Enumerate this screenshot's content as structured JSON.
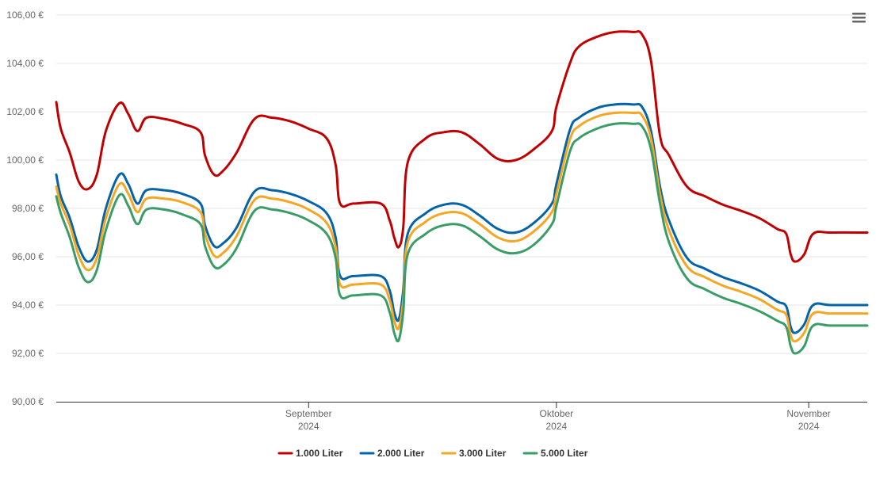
{
  "chart_data": {
    "type": "line",
    "currency_suffix": " €",
    "y_ticks": [
      "90,00 €",
      "92,00 €",
      "94,00 €",
      "96,00 €",
      "98,00 €",
      "100,00 €",
      "102,00 €",
      "104,00 €",
      "106,00 €"
    ],
    "ylim": [
      90,
      106
    ],
    "xlim": [
      0,
      90
    ],
    "x_ticks": [
      {
        "day": 28,
        "month": "September",
        "year": "2024"
      },
      {
        "day": 55.5,
        "month": "Oktober",
        "year": "2024"
      },
      {
        "day": 83.5,
        "month": "November",
        "year": "2024"
      }
    ],
    "grid": true,
    "legend_position": "bottom-center",
    "series": [
      {
        "name": "1.000 Liter",
        "color": "#c00000",
        "points": [
          [
            0,
            102.4
          ],
          [
            0.5,
            101.3
          ],
          [
            1.5,
            100.3
          ],
          [
            2.5,
            99.1
          ],
          [
            3.5,
            98.8
          ],
          [
            4.5,
            99.4
          ],
          [
            5.5,
            101.2
          ],
          [
            7,
            102.35
          ],
          [
            8,
            101.9
          ],
          [
            9,
            101.2
          ],
          [
            10,
            101.75
          ],
          [
            12,
            101.7
          ],
          [
            14,
            101.5
          ],
          [
            16,
            101.15
          ],
          [
            16.5,
            100.2
          ],
          [
            17.5,
            99.4
          ],
          [
            18.5,
            99.55
          ],
          [
            20,
            100.3
          ],
          [
            22,
            101.7
          ],
          [
            24,
            101.75
          ],
          [
            26,
            101.6
          ],
          [
            28,
            101.3
          ],
          [
            30,
            100.9
          ],
          [
            31,
            99.8
          ],
          [
            31.5,
            98.2
          ],
          [
            33,
            98.2
          ],
          [
            36,
            98.2
          ],
          [
            37,
            97.5
          ],
          [
            37.5,
            96.8
          ],
          [
            38,
            96.4
          ],
          [
            38.5,
            97.2
          ],
          [
            39,
            99.9
          ],
          [
            41,
            100.9
          ],
          [
            43,
            101.15
          ],
          [
            45,
            101.15
          ],
          [
            47,
            100.65
          ],
          [
            49,
            100.05
          ],
          [
            51,
            100.0
          ],
          [
            53,
            100.45
          ],
          [
            55,
            101.2
          ],
          [
            55.5,
            102.2
          ],
          [
            57,
            104.0
          ],
          [
            58,
            104.7
          ],
          [
            60,
            105.1
          ],
          [
            62,
            105.3
          ],
          [
            64,
            105.3
          ],
          [
            65,
            105.2
          ],
          [
            66,
            104.1
          ],
          [
            67,
            101.0
          ],
          [
            68,
            100.2
          ],
          [
            70,
            98.9
          ],
          [
            72,
            98.5
          ],
          [
            74,
            98.15
          ],
          [
            76,
            97.9
          ],
          [
            78,
            97.6
          ],
          [
            80,
            97.15
          ],
          [
            81,
            96.95
          ],
          [
            81.5,
            96.1
          ],
          [
            82,
            95.8
          ],
          [
            83,
            96.1
          ],
          [
            84,
            96.95
          ],
          [
            86,
            97.0
          ],
          [
            90,
            97.0
          ]
        ]
      },
      {
        "name": "2.000 Liter",
        "color": "#0563a8",
        "points": [
          [
            0,
            99.4
          ],
          [
            0.5,
            98.5
          ],
          [
            1.5,
            97.6
          ],
          [
            2.5,
            96.4
          ],
          [
            3.5,
            95.8
          ],
          [
            4.5,
            96.3
          ],
          [
            5.5,
            98.0
          ],
          [
            7,
            99.4
          ],
          [
            8,
            99.0
          ],
          [
            9,
            98.2
          ],
          [
            10,
            98.75
          ],
          [
            12,
            98.75
          ],
          [
            14,
            98.6
          ],
          [
            16,
            98.2
          ],
          [
            16.5,
            97.3
          ],
          [
            17.5,
            96.45
          ],
          [
            18.5,
            96.55
          ],
          [
            20,
            97.2
          ],
          [
            22,
            98.7
          ],
          [
            24,
            98.75
          ],
          [
            26,
            98.6
          ],
          [
            28,
            98.3
          ],
          [
            30,
            97.8
          ],
          [
            31,
            96.8
          ],
          [
            31.5,
            95.2
          ],
          [
            33,
            95.2
          ],
          [
            36,
            95.2
          ],
          [
            37,
            94.6
          ],
          [
            37.5,
            93.7
          ],
          [
            38,
            93.4
          ],
          [
            38.5,
            94.6
          ],
          [
            39,
            96.95
          ],
          [
            41,
            97.8
          ],
          [
            43,
            98.15
          ],
          [
            45,
            98.15
          ],
          [
            47,
            97.7
          ],
          [
            49,
            97.15
          ],
          [
            51,
            97.0
          ],
          [
            53,
            97.4
          ],
          [
            55,
            98.2
          ],
          [
            55.5,
            99.0
          ],
          [
            57,
            101.25
          ],
          [
            58,
            101.75
          ],
          [
            60,
            102.15
          ],
          [
            62,
            102.3
          ],
          [
            64,
            102.3
          ],
          [
            65,
            102.2
          ],
          [
            66,
            101.2
          ],
          [
            67,
            98.9
          ],
          [
            68,
            97.5
          ],
          [
            70,
            95.95
          ],
          [
            72,
            95.5
          ],
          [
            74,
            95.15
          ],
          [
            76,
            94.9
          ],
          [
            78,
            94.6
          ],
          [
            80,
            94.15
          ],
          [
            81,
            93.95
          ],
          [
            81.5,
            93.1
          ],
          [
            82,
            92.85
          ],
          [
            83,
            93.2
          ],
          [
            84,
            94.0
          ],
          [
            86,
            94.0
          ],
          [
            90,
            94.0
          ]
        ]
      },
      {
        "name": "3.000 Liter",
        "color": "#f5a623",
        "points": [
          [
            0,
            98.9
          ],
          [
            0.5,
            98.2
          ],
          [
            1.5,
            97.3
          ],
          [
            2.5,
            96.05
          ],
          [
            3.5,
            95.45
          ],
          [
            4.5,
            95.95
          ],
          [
            5.5,
            97.6
          ],
          [
            7,
            99.0
          ],
          [
            8,
            98.6
          ],
          [
            9,
            97.85
          ],
          [
            10,
            98.4
          ],
          [
            12,
            98.4
          ],
          [
            14,
            98.25
          ],
          [
            16,
            97.85
          ],
          [
            16.5,
            96.95
          ],
          [
            17.5,
            96.05
          ],
          [
            18.5,
            96.15
          ],
          [
            20,
            96.85
          ],
          [
            22,
            98.35
          ],
          [
            24,
            98.4
          ],
          [
            26,
            98.25
          ],
          [
            28,
            97.95
          ],
          [
            30,
            97.4
          ],
          [
            31,
            96.4
          ],
          [
            31.5,
            94.85
          ],
          [
            33,
            94.85
          ],
          [
            36,
            94.85
          ],
          [
            37,
            94.2
          ],
          [
            37.5,
            93.35
          ],
          [
            38,
            93.05
          ],
          [
            38.5,
            94.2
          ],
          [
            39,
            96.6
          ],
          [
            41,
            97.45
          ],
          [
            43,
            97.8
          ],
          [
            45,
            97.8
          ],
          [
            47,
            97.35
          ],
          [
            49,
            96.8
          ],
          [
            51,
            96.65
          ],
          [
            53,
            97.05
          ],
          [
            55,
            97.85
          ],
          [
            55.5,
            98.6
          ],
          [
            57,
            100.85
          ],
          [
            58,
            101.4
          ],
          [
            60,
            101.8
          ],
          [
            62,
            101.95
          ],
          [
            64,
            101.95
          ],
          [
            65,
            101.85
          ],
          [
            66,
            100.9
          ],
          [
            67,
            98.6
          ],
          [
            68,
            97.1
          ],
          [
            70,
            95.6
          ],
          [
            72,
            95.15
          ],
          [
            74,
            94.8
          ],
          [
            76,
            94.55
          ],
          [
            78,
            94.25
          ],
          [
            80,
            93.8
          ],
          [
            81,
            93.6
          ],
          [
            81.5,
            92.75
          ],
          [
            82,
            92.5
          ],
          [
            83,
            92.85
          ],
          [
            84,
            93.65
          ],
          [
            86,
            93.65
          ],
          [
            90,
            93.65
          ]
        ]
      },
      {
        "name": "5.000 Liter",
        "color": "#3a9d68",
        "points": [
          [
            0,
            98.5
          ],
          [
            0.5,
            97.8
          ],
          [
            1.5,
            96.8
          ],
          [
            2.5,
            95.55
          ],
          [
            3.5,
            94.95
          ],
          [
            4.5,
            95.45
          ],
          [
            5.5,
            97.1
          ],
          [
            7,
            98.55
          ],
          [
            8,
            98.1
          ],
          [
            9,
            97.35
          ],
          [
            10,
            97.95
          ],
          [
            12,
            97.95
          ],
          [
            14,
            97.75
          ],
          [
            16,
            97.35
          ],
          [
            16.5,
            96.45
          ],
          [
            17.5,
            95.6
          ],
          [
            18.5,
            95.65
          ],
          [
            20,
            96.35
          ],
          [
            22,
            97.9
          ],
          [
            24,
            97.95
          ],
          [
            26,
            97.8
          ],
          [
            28,
            97.5
          ],
          [
            30,
            96.95
          ],
          [
            31,
            95.95
          ],
          [
            31.5,
            94.4
          ],
          [
            33,
            94.4
          ],
          [
            36,
            94.4
          ],
          [
            37,
            93.7
          ],
          [
            37.5,
            92.85
          ],
          [
            38,
            92.55
          ],
          [
            38.5,
            93.7
          ],
          [
            39,
            96.1
          ],
          [
            41,
            96.95
          ],
          [
            43,
            97.3
          ],
          [
            45,
            97.3
          ],
          [
            47,
            96.85
          ],
          [
            49,
            96.3
          ],
          [
            51,
            96.15
          ],
          [
            53,
            96.5
          ],
          [
            55,
            97.35
          ],
          [
            55.5,
            98.1
          ],
          [
            57,
            100.35
          ],
          [
            58,
            100.9
          ],
          [
            60,
            101.3
          ],
          [
            62,
            101.5
          ],
          [
            64,
            101.5
          ],
          [
            65,
            101.4
          ],
          [
            66,
            100.45
          ],
          [
            67,
            98.2
          ],
          [
            68,
            96.6
          ],
          [
            70,
            95.1
          ],
          [
            72,
            94.65
          ],
          [
            74,
            94.3
          ],
          [
            76,
            94.05
          ],
          [
            78,
            93.75
          ],
          [
            80,
            93.35
          ],
          [
            81,
            93.1
          ],
          [
            81.5,
            92.3
          ],
          [
            82,
            92.0
          ],
          [
            83,
            92.3
          ],
          [
            84,
            93.15
          ],
          [
            86,
            93.15
          ],
          [
            90,
            93.15
          ]
        ]
      }
    ]
  }
}
